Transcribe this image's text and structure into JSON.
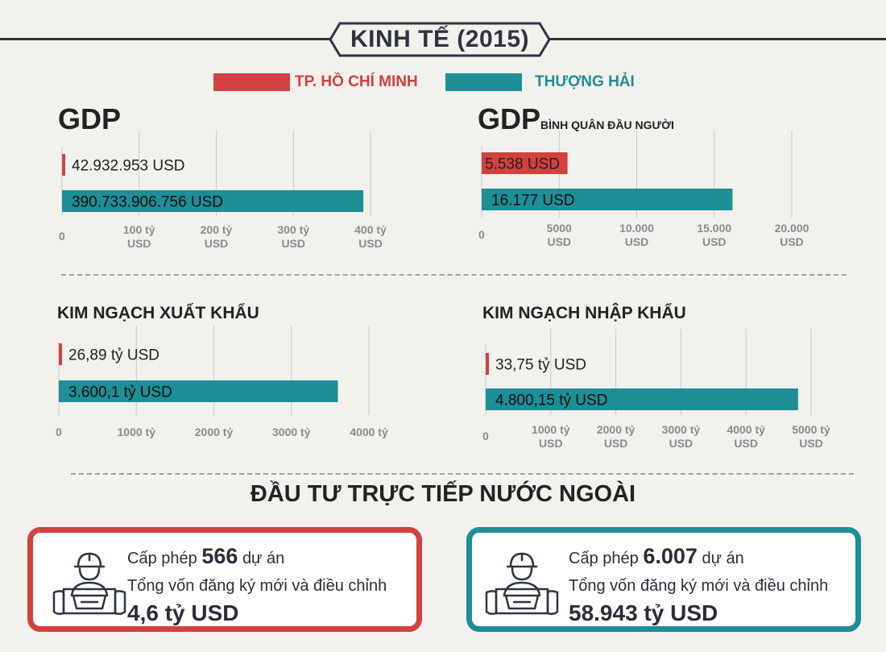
{
  "header": {
    "title": "KINH TẾ (2015)"
  },
  "colors": {
    "hcm": "#d0413f",
    "sh": "#1e8e97",
    "grid": "#c9c9c9",
    "tick": "#8a8a8a",
    "dark": "#2f3443"
  },
  "legend": {
    "hcm": "TP. HỒ CHÍ MINH",
    "sh": "THƯỢNG HẢI"
  },
  "chart_data": [
    {
      "type": "bar",
      "title": "GDP",
      "subtitle": "",
      "orientation": "horizontal",
      "series": [
        {
          "name": "TP. HỒ CHÍ MINH",
          "value": 42932953,
          "label": "42.932.953 USD"
        },
        {
          "name": "THƯỢNG HẢI",
          "value": 390733906756,
          "label": "390.733.906.756 USD"
        }
      ],
      "xlim": [
        0,
        400000000000
      ],
      "ticks": [
        {
          "value": 0,
          "line1": "0",
          "line2": ""
        },
        {
          "value": 100000000000,
          "line1": "100 tỷ",
          "line2": "USD"
        },
        {
          "value": 200000000000,
          "line1": "200 tỷ",
          "line2": "USD"
        },
        {
          "value": 300000000000,
          "line1": "300 tỷ",
          "line2": "USD"
        },
        {
          "value": 400000000000,
          "line1": "400 tỷ",
          "line2": "USD"
        }
      ],
      "grid": true
    },
    {
      "type": "bar",
      "title": "GDP",
      "subtitle": "BÌNH QUÂN ĐẦU NGƯỜI",
      "orientation": "horizontal",
      "series": [
        {
          "name": "TP. HỒ CHÍ MINH",
          "value": 5538,
          "label": "5.538 USD"
        },
        {
          "name": "THƯỢNG HẢI",
          "value": 16177,
          "label": "16.177 USD"
        }
      ],
      "xlim": [
        0,
        20000
      ],
      "ticks": [
        {
          "value": 0,
          "line1": "0",
          "line2": ""
        },
        {
          "value": 5000,
          "line1": "5000",
          "line2": "USD"
        },
        {
          "value": 10000,
          "line1": "10.000",
          "line2": "USD"
        },
        {
          "value": 15000,
          "line1": "15.000",
          "line2": "USD"
        },
        {
          "value": 20000,
          "line1": "20.000",
          "line2": "USD"
        }
      ],
      "grid": true
    },
    {
      "type": "bar",
      "title": "KIM NGẠCH XUẤT KHẨU",
      "subtitle": "",
      "orientation": "horizontal",
      "series": [
        {
          "name": "TP. HỒ CHÍ MINH",
          "value": 26.89,
          "label": "26,89 tỷ USD"
        },
        {
          "name": "THƯỢNG HẢI",
          "value": 3600.1,
          "label": "3.600,1 tỷ USD"
        }
      ],
      "xlim": [
        0,
        4000
      ],
      "ticks": [
        {
          "value": 0,
          "line1": "0",
          "line2": ""
        },
        {
          "value": 1000,
          "line1": "1000 tỷ",
          "line2": ""
        },
        {
          "value": 2000,
          "line1": "2000 tỷ",
          "line2": ""
        },
        {
          "value": 3000,
          "line1": "3000 tỷ",
          "line2": ""
        },
        {
          "value": 4000,
          "line1": "4000 tỷ",
          "line2": ""
        }
      ],
      "grid": true
    },
    {
      "type": "bar",
      "title": "KIM NGẠCH NHẬP KHẨU",
      "subtitle": "",
      "orientation": "horizontal",
      "series": [
        {
          "name": "TP. HỒ CHÍ MINH",
          "value": 33.75,
          "label": "33,75 tỷ USD"
        },
        {
          "name": "THƯỢNG HẢI",
          "value": 4800.15,
          "label": "4.800,15 tỷ USD"
        }
      ],
      "xlim": [
        0,
        5000
      ],
      "ticks": [
        {
          "value": 0,
          "line1": "0",
          "line2": ""
        },
        {
          "value": 1000,
          "line1": "1000 tỷ",
          "line2": "USD"
        },
        {
          "value": 2000,
          "line1": "2000 tỷ",
          "line2": "USD"
        },
        {
          "value": 3000,
          "line1": "3000 tỷ",
          "line2": "USD"
        },
        {
          "value": 4000,
          "line1": "4000 tỷ",
          "line2": "USD"
        },
        {
          "value": 5000,
          "line1": "5000 tỷ",
          "line2": "USD"
        }
      ],
      "grid": true
    }
  ],
  "fdi": {
    "title": "ĐẦU TƯ TRỰC TIẾP NƯỚC NGOÀI",
    "hcm": {
      "prefix": "Cấp phép",
      "count": "566",
      "suffix": "dự án",
      "capital_label": "Tổng vốn đăng ký mới và điều chỉnh",
      "capital_value": "4,6 tỷ USD",
      "icon": "construction-worker-icon"
    },
    "sh": {
      "prefix": "Cấp phép",
      "count": "6.007",
      "suffix": "dự án",
      "capital_label": "Tổng vốn đăng ký mới và điều chỉnh",
      "capital_value": "58.943 tỷ USD",
      "icon": "construction-worker-icon"
    }
  }
}
